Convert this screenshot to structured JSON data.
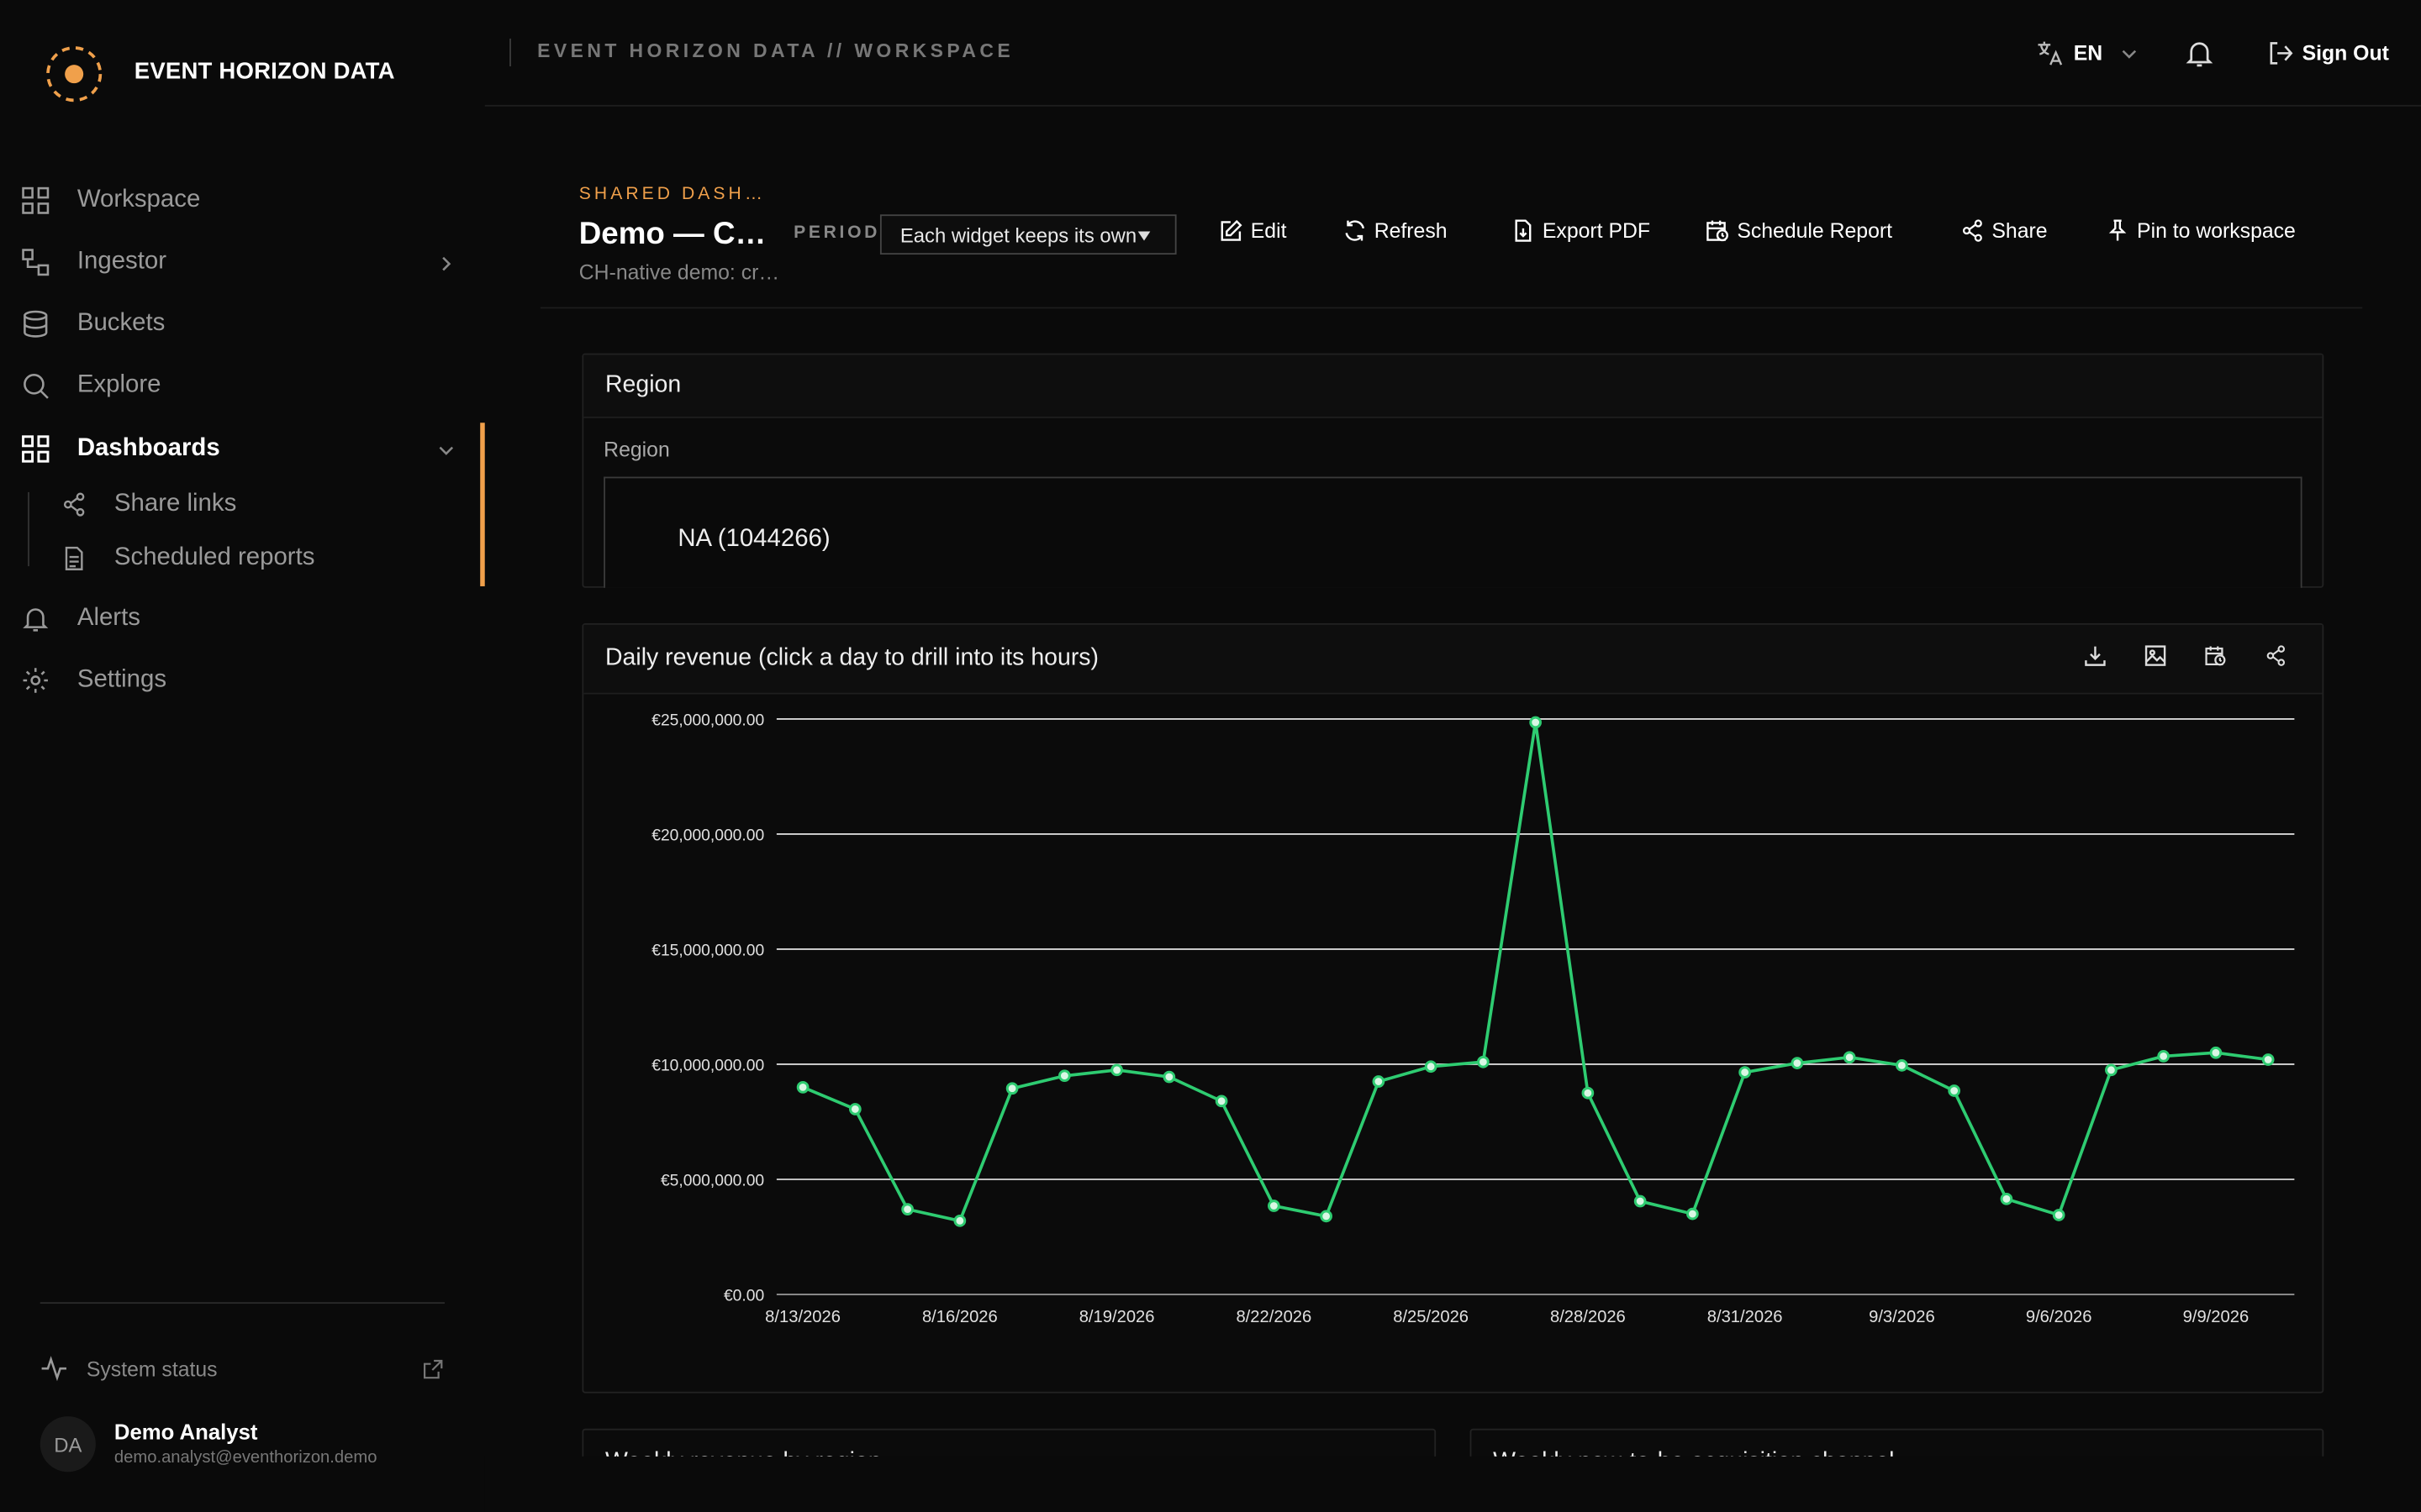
{
  "app": {
    "brand": "EVENT HORIZON DATA",
    "breadcrumb": "EVENT HORIZON DATA // WORKSPACE"
  },
  "sidebar": {
    "items": [
      {
        "label": "Workspace",
        "icon": "grid-icon"
      },
      {
        "label": "Ingestor",
        "icon": "ingestor-icon"
      },
      {
        "label": "Buckets",
        "icon": "database-icon"
      },
      {
        "label": "Explore",
        "icon": "search-icon"
      },
      {
        "label": "Dashboards",
        "icon": "grid-icon",
        "active": true
      },
      {
        "label": "Alerts",
        "icon": "bell-icon"
      },
      {
        "label": "Settings",
        "icon": "gear-icon"
      }
    ],
    "sub_items": [
      {
        "label": "Share links",
        "icon": "share-icon"
      },
      {
        "label": "Scheduled reports",
        "icon": "document-icon"
      }
    ],
    "system_status": "System status",
    "user": {
      "initials": "DA",
      "name": "Demo Analyst",
      "email": "demo.analyst@eventhorizon.demo"
    }
  },
  "topbar": {
    "language": "EN",
    "sign_out": "Sign Out"
  },
  "dashboard": {
    "kicker": "SHARED DASHBOARD",
    "title": "Demo — Cross-channel",
    "subtitle": "CH-native demo: cross-channel",
    "period_label": "PERIOD",
    "period_value": "Each widget keeps its own",
    "actions": {
      "edit": "Edit",
      "refresh": "Refresh",
      "export": "Export PDF",
      "schedule": "Schedule Report",
      "share": "Share",
      "pin": "Pin to workspace"
    }
  },
  "region_widget": {
    "title": "Region",
    "field_label": "Region",
    "selected": "NA (1044266)"
  },
  "chart_widget": {
    "title": "Daily revenue (click a day to drill into its hours)"
  },
  "colors": {
    "accent": "#f0a04b",
    "line": "#2ecc71"
  },
  "chart_data": {
    "type": "line",
    "title": "Daily revenue (click a day to drill into its hours)",
    "x": [
      "8/13/2026",
      "8/14/2026",
      "8/15/2026",
      "8/16/2026",
      "8/17/2026",
      "8/18/2026",
      "8/19/2026",
      "8/20/2026",
      "8/21/2026",
      "8/22/2026",
      "8/23/2026",
      "8/24/2026",
      "8/25/2026",
      "8/26/2026",
      "8/27/2026",
      "8/28/2026",
      "8/29/2026",
      "8/30/2026",
      "8/31/2026",
      "9/1/2026",
      "9/2/2026",
      "9/3/2026",
      "9/4/2026",
      "9/5/2026",
      "9/6/2026",
      "9/7/2026",
      "9/8/2026",
      "9/9/2026",
      "9/10/2026"
    ],
    "x_ticks": [
      "8/13/2026",
      "8/16/2026",
      "8/19/2026",
      "8/22/2026",
      "8/25/2026",
      "8/28/2026",
      "8/31/2026",
      "9/3/2026",
      "9/6/2026",
      "9/9/2026"
    ],
    "series": [
      {
        "values": [
          9000000,
          8050000,
          3700000,
          3200000,
          8950000,
          9500000,
          9750000,
          9450000,
          8400000,
          3850000,
          3400000,
          9250000,
          9900000,
          10100000,
          24850000,
          8750000,
          4050000,
          3500000,
          9650000,
          10050000,
          10300000,
          9950000,
          8850000,
          4150000,
          3450000,
          9750000,
          10350000,
          10500000,
          10200000
        ]
      }
    ],
    "yticks": [
      "€0.00",
      "€5,000,000.00",
      "€10,000,000.00",
      "€15,000,000.00",
      "€20,000,000.00",
      "€25,000,000.00"
    ],
    "ylim": [
      0,
      25000000
    ],
    "grid": true
  },
  "bottom_widgets": [
    {
      "title": "Weekly revenue by region"
    },
    {
      "title": "Weekly new-to-be acquisition channel"
    }
  ]
}
